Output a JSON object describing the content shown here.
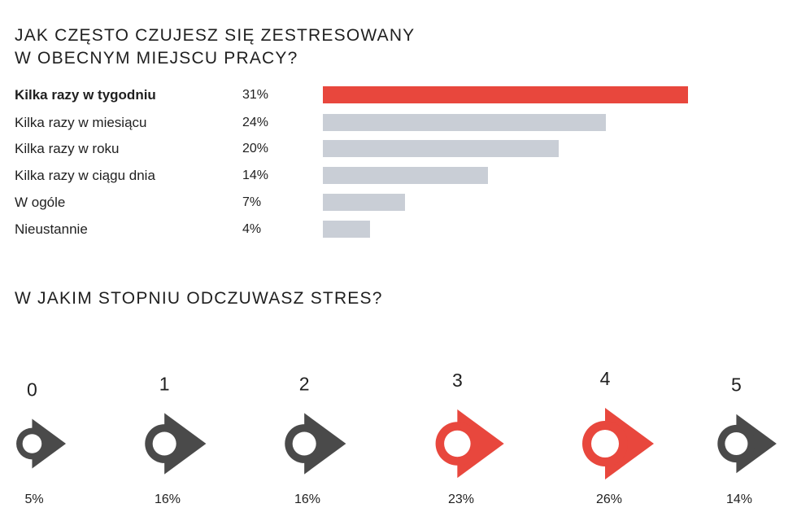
{
  "colors": {
    "accent": "#e8473d",
    "neutral_bar": "#c9ced6",
    "neutral_icon": "#4a4a4a"
  },
  "chart_data": [
    {
      "type": "bar",
      "orientation": "horizontal",
      "title": "JAK CZĘSTO CZUJESZ SIĘ ZESTRESOWANY\nW OBECNYM MIEJSCU PRACY?",
      "categories": [
        "Kilka razy w tygodniu",
        "Kilka razy w miesiącu",
        "Kilka razy w roku",
        "Kilka razy w ciągu dnia",
        "W ogóle",
        "Nieustannie"
      ],
      "values": [
        31,
        24,
        20,
        14,
        7,
        4
      ],
      "value_labels": [
        "31%",
        "24%",
        "20%",
        "14%",
        "7%",
        "4%"
      ],
      "highlighted": [
        true,
        false,
        false,
        false,
        false,
        false
      ],
      "grid": false
    },
    {
      "type": "icon-scale",
      "title": "W JAKIM STOPNIU ODCZUWASZ STRES?",
      "categories": [
        "0",
        "1",
        "2",
        "3",
        "4",
        "5"
      ],
      "values": [
        5,
        16,
        16,
        23,
        26,
        14
      ],
      "value_labels": [
        "5%",
        "16%",
        "16%",
        "23%",
        "26%",
        "14%"
      ],
      "highlighted": [
        false,
        false,
        false,
        true,
        true,
        false
      ],
      "icon": "circle-arrow-icon"
    }
  ]
}
